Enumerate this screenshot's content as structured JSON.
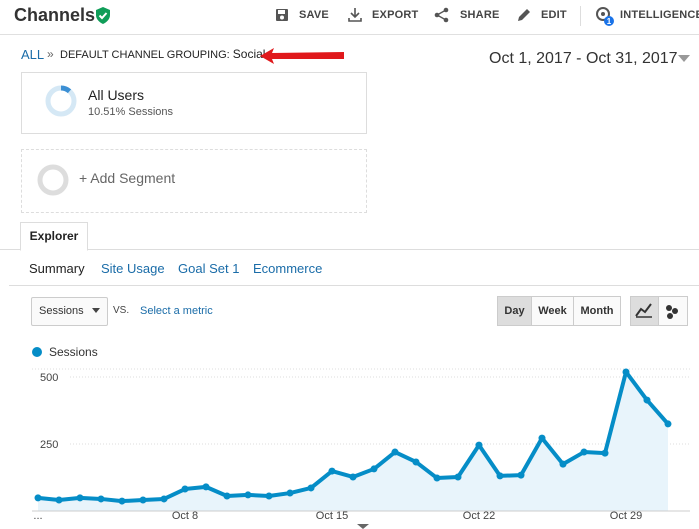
{
  "header": {
    "title": "Channels",
    "actions": [
      "SAVE",
      "EXPORT",
      "SHARE",
      "EDIT",
      "INTELLIGENCE"
    ]
  },
  "breadcrumb": {
    "root": "ALL",
    "separator": "»",
    "label": "DEFAULT CHANNEL GROUPING:",
    "value": "Social"
  },
  "date_range": "Oct 1, 2017 - Oct 31, 2017",
  "segments": [
    {
      "name": "All Users",
      "detail": "10.51% Sessions"
    },
    {
      "name": "+ Add Segment"
    }
  ],
  "tabs": [
    "Explorer"
  ],
  "subtabs": [
    "Summary",
    "Site Usage",
    "Goal Set 1",
    "Ecommerce"
  ],
  "controls": {
    "metric": "Sessions",
    "vs": "VS.",
    "compare": "Select a metric",
    "granularity": [
      "Day",
      "Week",
      "Month"
    ]
  },
  "chart_data": {
    "type": "area",
    "categories": [
      "...",
      null,
      null,
      null,
      null,
      null,
      null,
      "Oct 8",
      null,
      null,
      null,
      null,
      null,
      null,
      "Oct 15",
      null,
      null,
      null,
      null,
      null,
      null,
      "Oct 22",
      null,
      null,
      null,
      null,
      null,
      null,
      "Oct 29",
      null,
      null
    ],
    "series": [
      {
        "name": "Sessions",
        "color": "#058dc7",
        "values": [
          49,
          41,
          49,
          45,
          37,
          41,
          45,
          82,
          90,
          56,
          60,
          56,
          67,
          86,
          149,
          127,
          157,
          220,
          183,
          123,
          127,
          246,
          131,
          134,
          272,
          175,
          220,
          216,
          519,
          414,
          325
        ]
      }
    ],
    "ylim": [
      0,
      530
    ],
    "yticks": [
      250,
      500
    ],
    "grid": true
  }
}
